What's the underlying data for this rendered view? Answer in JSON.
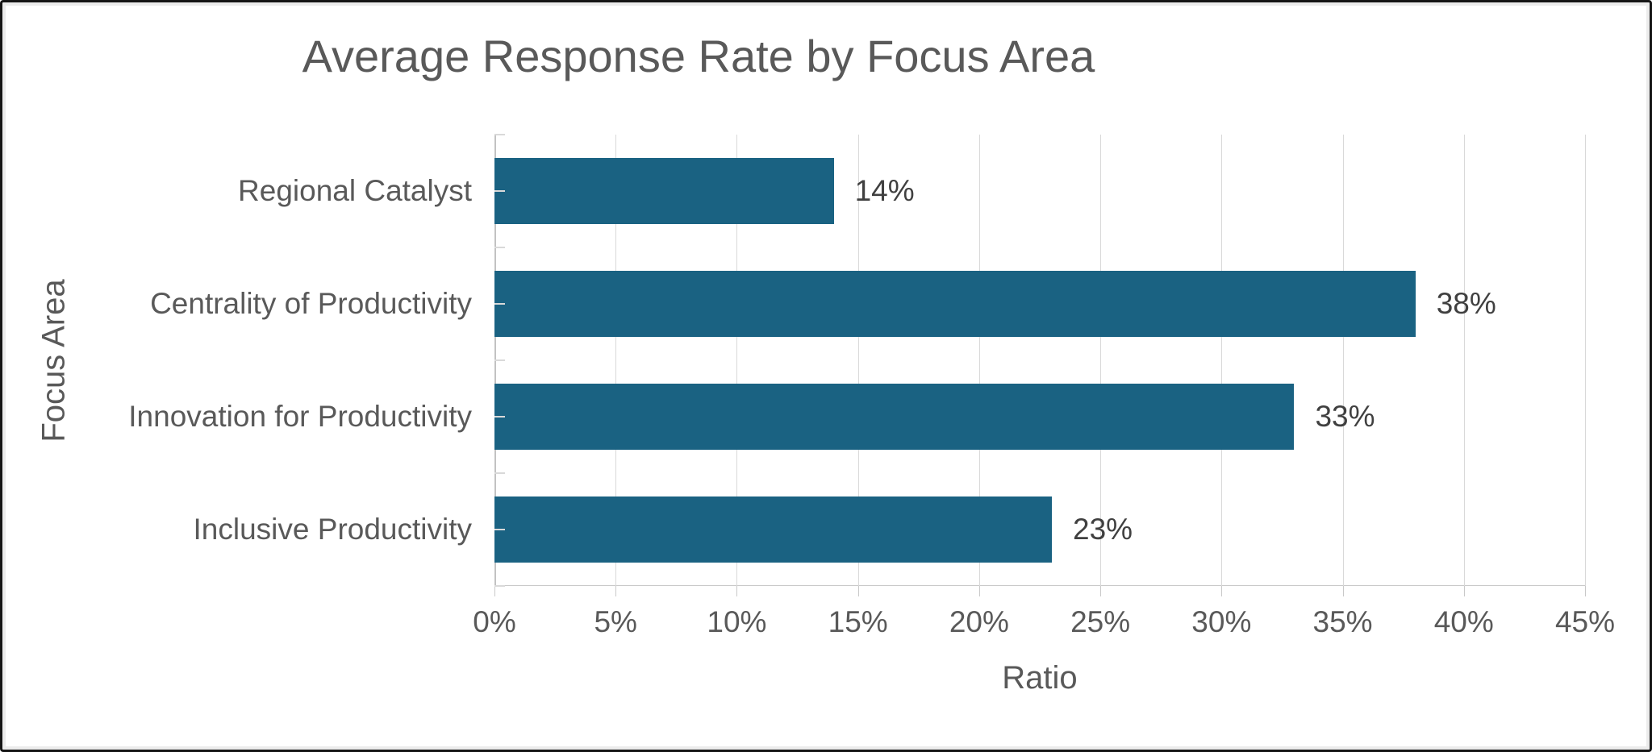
{
  "chart_data": {
    "type": "bar",
    "orientation": "horizontal",
    "title": "Average Response Rate by Focus Area",
    "xlabel": "Ratio",
    "ylabel": "Focus Area",
    "categories": [
      "Regional Catalyst",
      "Centrality of Productivity",
      "Innovation for Productivity",
      "Inclusive Productivity"
    ],
    "values": [
      14,
      38,
      33,
      23
    ],
    "data_labels": [
      "14%",
      "38%",
      "33%",
      "23%"
    ],
    "xlim": [
      0,
      45
    ],
    "xticks": [
      "0%",
      "5%",
      "10%",
      "15%",
      "20%",
      "25%",
      "30%",
      "35%",
      "40%",
      "45%"
    ],
    "grid": true,
    "legend": "none",
    "colors": {
      "bar": "#1A6282",
      "axis_text": "#595959",
      "data_label_text": "#404040",
      "gridline": "#D9D9D9",
      "axis_line": "#C2C2C2"
    }
  }
}
